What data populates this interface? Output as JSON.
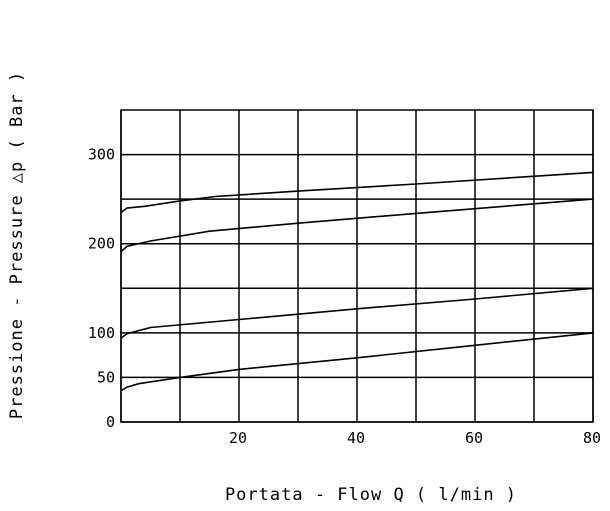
{
  "chart_data": {
    "type": "line",
    "title": "",
    "xlabel": "Portata - Flow  Q ( l/min )",
    "ylabel": "Pressione - Pressure △p ( Bar )",
    "xlim": [
      0,
      80
    ],
    "ylim": [
      0,
      350
    ],
    "grid": true,
    "x_ticks": [
      20,
      40,
      60,
      80
    ],
    "x_tick_labels": [
      "20",
      "40",
      "60",
      "80"
    ],
    "y_ticks": [
      0,
      50,
      100,
      200,
      300
    ],
    "y_tick_labels": [
      "0",
      "50",
      "100",
      "200",
      "300"
    ],
    "x_gridlines": [
      0,
      10,
      20,
      30,
      40,
      50,
      60,
      70,
      80
    ],
    "y_gridlines": [
      0,
      50,
      100,
      150,
      200,
      250,
      300
    ],
    "series": [
      {
        "values": [
          [
            0,
            235
          ],
          [
            1,
            240
          ],
          [
            4,
            242
          ],
          [
            10,
            248
          ],
          [
            16,
            253
          ],
          [
            30,
            259
          ],
          [
            50,
            267
          ],
          [
            80,
            280
          ]
        ]
      },
      {
        "values": [
          [
            0,
            191
          ],
          [
            1,
            197
          ],
          [
            5,
            203
          ],
          [
            15,
            214
          ],
          [
            30,
            223
          ],
          [
            50,
            234
          ],
          [
            80,
            250
          ]
        ]
      },
      {
        "values": [
          [
            0,
            94
          ],
          [
            1,
            99
          ],
          [
            5,
            106
          ],
          [
            20,
            115
          ],
          [
            40,
            127
          ],
          [
            60,
            138
          ],
          [
            80,
            150
          ]
        ]
      },
      {
        "values": [
          [
            0,
            35
          ],
          [
            1,
            39
          ],
          [
            3,
            43
          ],
          [
            10,
            50
          ],
          [
            20,
            59
          ],
          [
            40,
            72
          ],
          [
            60,
            86
          ],
          [
            80,
            100
          ]
        ]
      }
    ]
  }
}
